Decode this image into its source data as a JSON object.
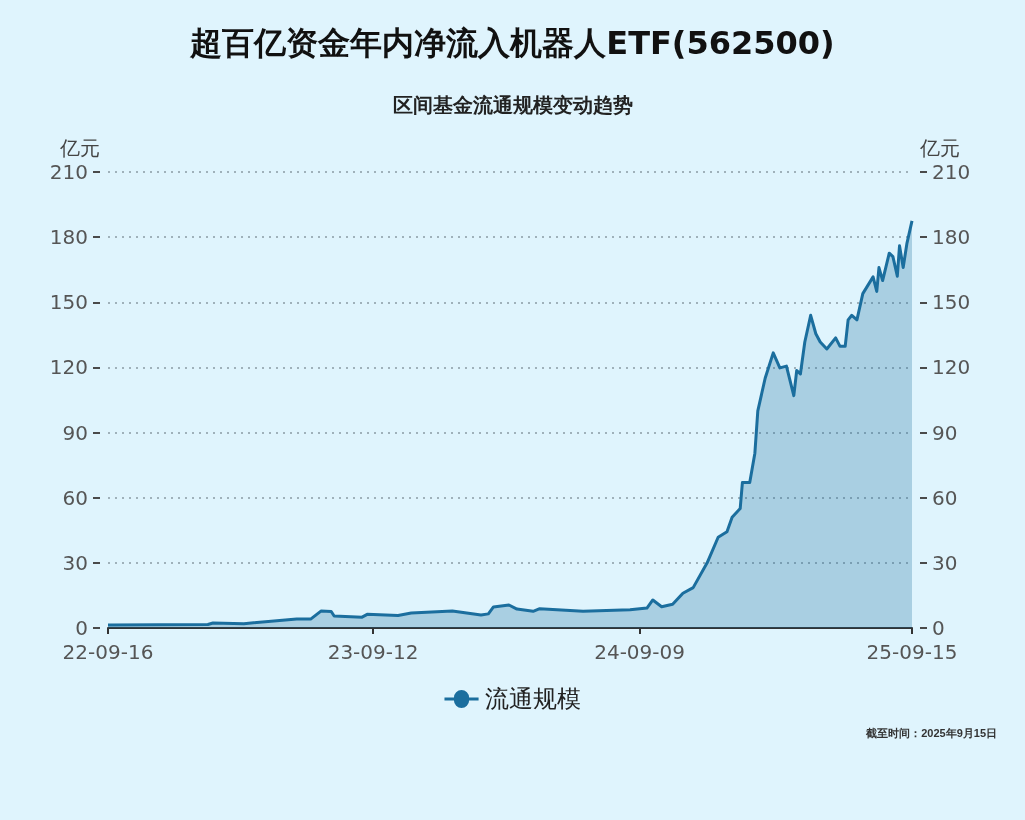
{
  "chart_data": {
    "type": "area",
    "title": "超百亿资金年内净流入机器人ETF(562500)",
    "subtitle": "区间基金流通规模变动趋势",
    "ylabel": "亿元",
    "y2label": "亿元",
    "x": [
      "2022-09-16",
      "2022-09-19",
      "2023-01-30",
      "2023-02-06",
      "2023-03-20",
      "2023-05-31",
      "2023-06-19",
      "2023-07-03",
      "2023-07-17",
      "2023-07-21",
      "2023-08-28",
      "2023-09-04",
      "2023-10-16",
      "2023-11-03",
      "2023-12-29",
      "2024-02-06",
      "2024-02-16",
      "2024-02-23",
      "2024-03-15",
      "2024-03-26",
      "2024-04-17",
      "2024-04-26",
      "2024-06-24",
      "2024-08-27",
      "2024-09-19",
      "2024-09-27",
      "2024-10-09",
      "2024-10-24",
      "2024-11-07",
      "2024-11-21",
      "2024-12-10",
      "2024-12-25",
      "2025-01-06",
      "2025-01-13",
      "2025-01-24",
      "2025-01-27",
      "2025-02-06",
      "2025-02-13",
      "2025-02-17",
      "2025-02-27",
      "2025-03-10",
      "2025-03-19",
      "2025-03-28",
      "2025-04-07",
      "2025-04-11",
      "2025-04-16",
      "2025-04-22",
      "2025-04-30",
      "2025-05-07",
      "2025-05-13",
      "2025-05-22",
      "2025-06-03",
      "2025-06-09",
      "2025-06-16",
      "2025-06-20",
      "2025-06-25",
      "2025-07-02",
      "2025-07-10",
      "2025-07-24",
      "2025-07-29",
      "2025-08-01",
      "2025-08-06",
      "2025-08-15",
      "2025-08-20",
      "2025-08-26",
      "2025-08-29",
      "2025-09-03",
      "2025-09-08",
      "2025-09-15"
    ],
    "series": [
      {
        "name": "流通规模",
        "color": "#1b6e9e",
        "values": [
          1.4,
          1.4,
          1.6,
          2.3,
          2.0,
          4.1,
          4.1,
          7.8,
          7.6,
          5.5,
          5.0,
          6.3,
          5.8,
          6.9,
          7.8,
          6.0,
          6.5,
          9.7,
          10.6,
          8.7,
          7.7,
          8.9,
          7.7,
          8.4,
          9.2,
          12.9,
          9.8,
          10.9,
          16,
          18.6,
          30,
          41.8,
          44.3,
          51,
          55,
          67,
          67,
          80.5,
          100,
          115,
          126.7,
          119.8,
          120.6,
          107,
          118.6,
          117,
          131.7,
          144,
          135.5,
          131.7,
          128.5,
          133.6,
          129.7,
          129.7,
          141.9,
          144,
          141.9,
          154,
          161.7,
          155,
          166,
          160,
          172.6,
          171,
          162,
          176,
          166,
          177,
          187.5
        ]
      }
    ],
    "xlim": [
      "2022-09-16",
      "2025-09-15"
    ],
    "xticks": [
      {
        "value": "2022-09-16",
        "label": "22-09-16"
      },
      {
        "value": "2023-09-12",
        "label": "23-09-12"
      },
      {
        "value": "2024-09-09",
        "label": "24-09-09"
      },
      {
        "value": "2025-09-15",
        "label": "25-09-15"
      }
    ],
    "ylim": [
      0,
      210
    ],
    "yticks": [
      0,
      30,
      60,
      90,
      120,
      150,
      180,
      210
    ],
    "y2lim": [
      0,
      210
    ],
    "y2ticks": [
      0,
      30,
      60,
      90,
      120,
      150,
      180,
      210
    ],
    "grid": "y",
    "legend": "bottom",
    "annotations": [
      "截至时间：2025年9月15日"
    ]
  }
}
